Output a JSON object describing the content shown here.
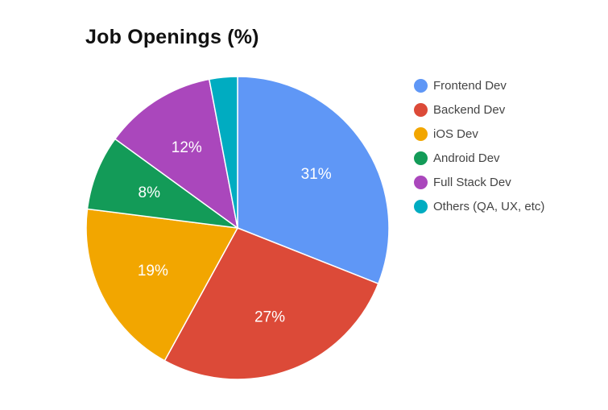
{
  "chart_data": {
    "type": "pie",
    "title": "Job Openings (%)",
    "categories": [
      "Frontend Dev",
      "Backend Dev",
      "iOS Dev",
      "Android Dev",
      "Full Stack Dev",
      "Others (QA, UX, etc)"
    ],
    "values": [
      31,
      27,
      19,
      8,
      12,
      3
    ],
    "slice_labels": [
      "31%",
      "27%",
      "19%",
      "8%",
      "12%",
      ""
    ],
    "colors": [
      "#5f97f6",
      "#dc4a38",
      "#f2a600",
      "#139b58",
      "#aa47bc",
      "#00acc1"
    ],
    "legend_position": "right"
  }
}
